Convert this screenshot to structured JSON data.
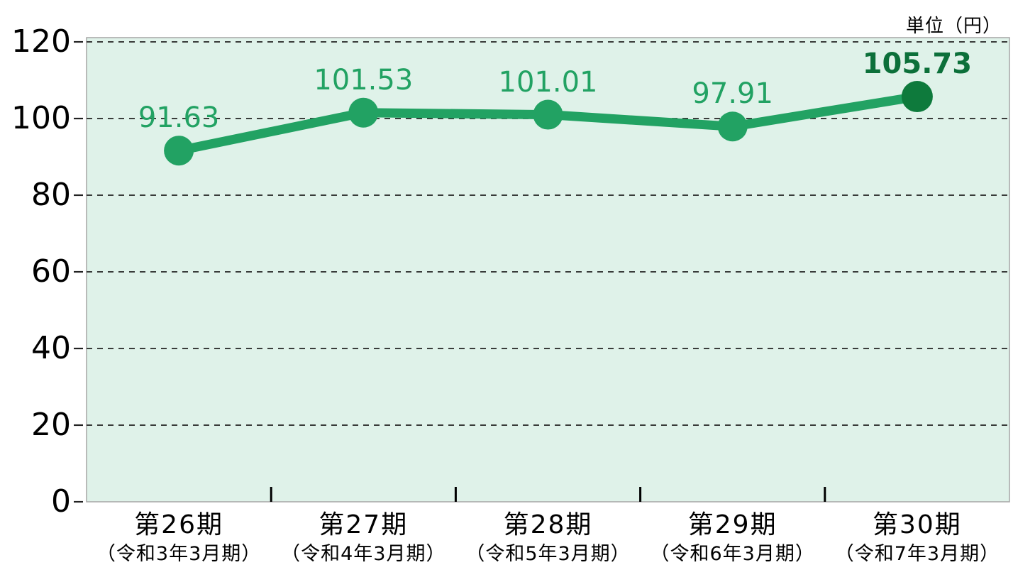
{
  "chart_data": {
    "type": "line",
    "title": "",
    "unit_label": "単位（円）",
    "categories": [
      {
        "term": "第26期",
        "period": "（令和3年3月期）"
      },
      {
        "term": "第27期",
        "period": "（令和4年3月期）"
      },
      {
        "term": "第28期",
        "period": "（令和5年3月期）"
      },
      {
        "term": "第29期",
        "period": "（令和6年3月期）"
      },
      {
        "term": "第30期",
        "period": "（令和7年3月期）"
      }
    ],
    "values": [
      91.63,
      101.53,
      101.01,
      97.91,
      105.73
    ],
    "value_labels": [
      "91.63",
      "101.53",
      "101.01",
      "97.91",
      "105.73"
    ],
    "ylim": [
      0,
      120
    ],
    "yticks": [
      0,
      20,
      40,
      60,
      80,
      100,
      120
    ],
    "grid": "horizontal-dashed",
    "legend": "none",
    "highlight_last_point": true,
    "colors": {
      "series": "#22a263",
      "series_dark": "#0e7a3c",
      "label_text": "#22a263",
      "label_text_dark": "#0c703a",
      "plot_background": "#dff2e9",
      "plot_border": "#a6a6a6",
      "gridline": "#222222",
      "axis_text": "#000000"
    }
  }
}
